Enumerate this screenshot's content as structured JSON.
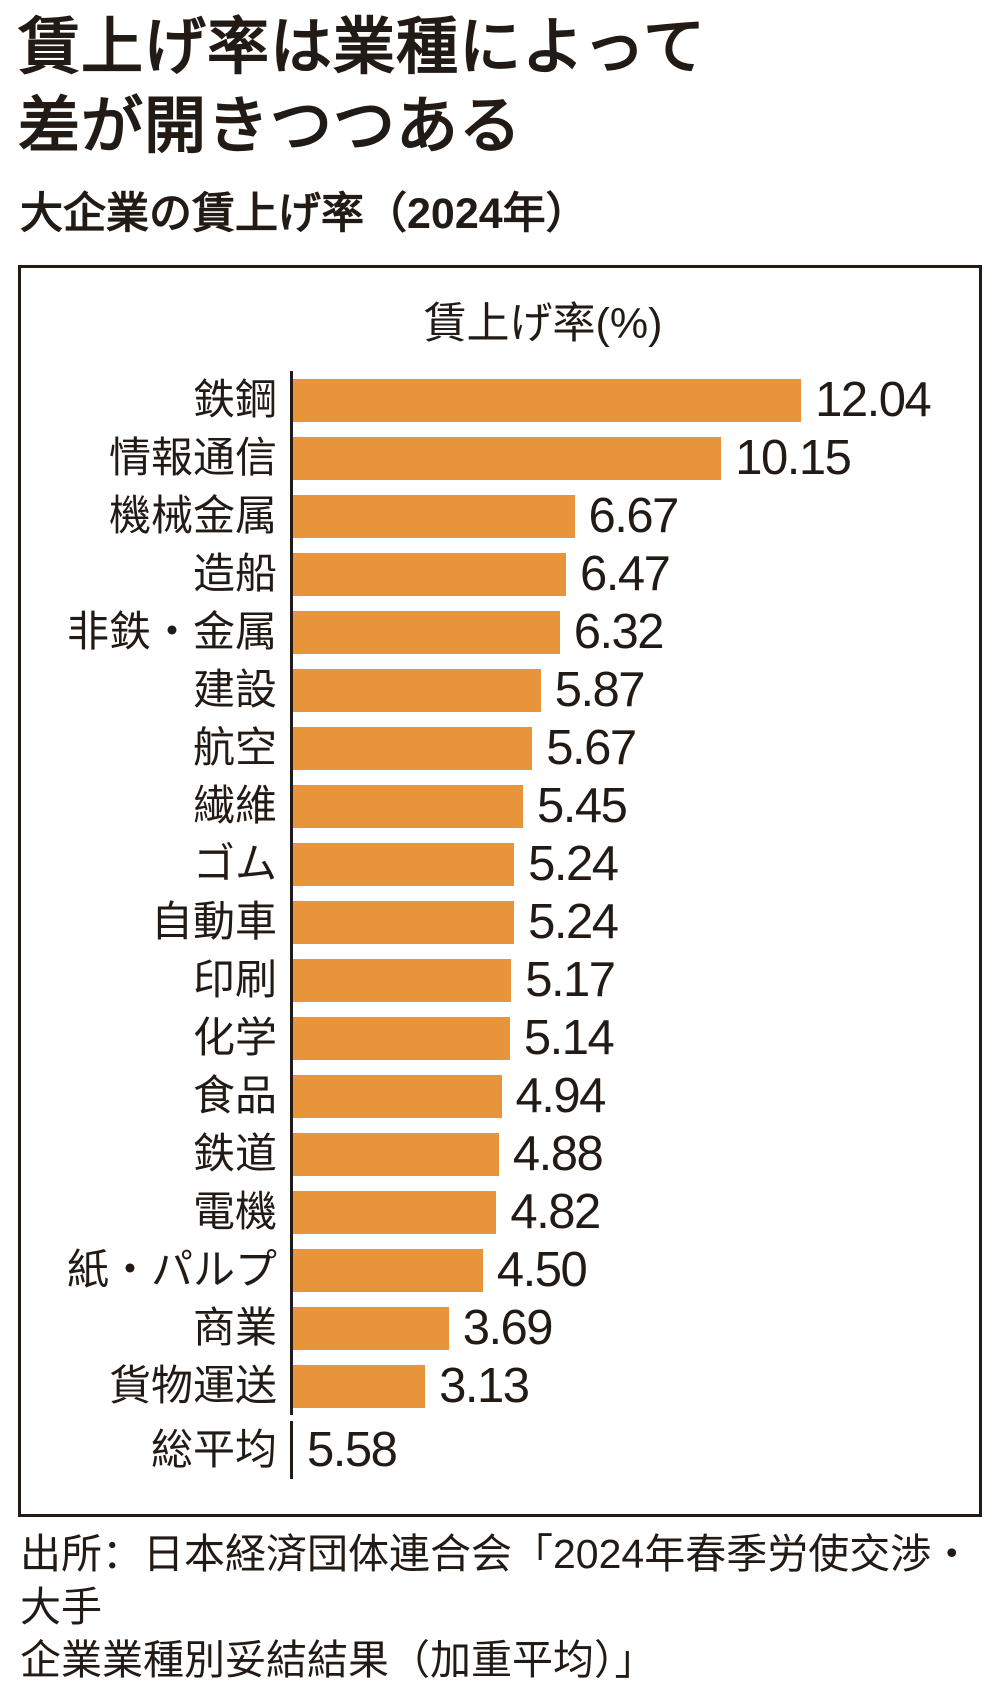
{
  "page": {
    "title_line1": "賃上げ率は業種によって",
    "title_line2": "差が開きつつある",
    "subtitle": "大企業の賃上げ率（2024年）",
    "source_line1": "出所：日本経済団体連合会「2024年春季労使交渉・大手",
    "source_line2": "企業業種別妥結結果（加重平均）」"
  },
  "chart_data": {
    "type": "bar",
    "orientation": "horizontal",
    "title": "賃上げ率(%)",
    "unit": "%",
    "categories": [
      "鉄鋼",
      "情報通信",
      "機械金属",
      "造船",
      "非鉄・金属",
      "建設",
      "航空",
      "繊維",
      "ゴム",
      "自動車",
      "印刷",
      "化学",
      "食品",
      "鉄道",
      "電機",
      "紙・パルプ",
      "商業",
      "貨物運送"
    ],
    "values": [
      12.04,
      10.15,
      6.67,
      6.47,
      6.32,
      5.87,
      5.67,
      5.45,
      5.24,
      5.24,
      5.17,
      5.14,
      4.94,
      4.88,
      4.82,
      4.5,
      3.69,
      3.13
    ],
    "average": {
      "label": "総平均",
      "value": "5.58"
    },
    "xlim": [
      0,
      12.6
    ],
    "value_format": "2dp",
    "grid": false,
    "legend_position": "none",
    "bar_color": "#e8943a",
    "axis_color": "#221a15",
    "text_color": "#221a15"
  }
}
